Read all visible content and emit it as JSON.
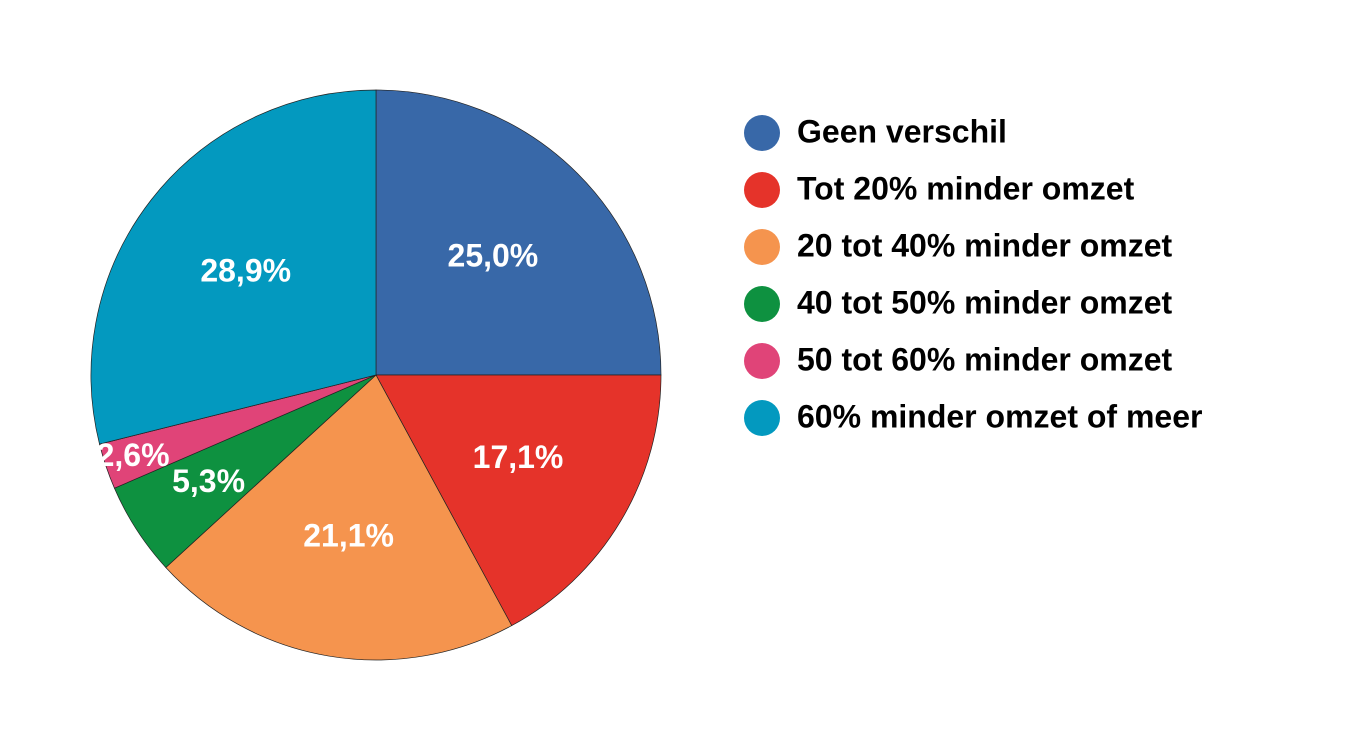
{
  "chart_data": {
    "type": "pie",
    "categories": [
      "Geen verschil",
      "Tot 20% minder omzet",
      "20 tot 40% minder omzet",
      "40 tot 50% minder omzet",
      "50 tot 60% minder omzet",
      "60% minder omzet of meer"
    ],
    "values": [
      25.0,
      17.1,
      21.1,
      5.3,
      2.6,
      28.9
    ],
    "value_labels": [
      "25,0%",
      "17,1%",
      "21,1%",
      "5,3%",
      "2,6%",
      "28,9%"
    ],
    "colors": [
      "#3868a8",
      "#e5332a",
      "#f5944e",
      "#0e9140",
      "#e04478",
      "#0399bf"
    ],
    "legend": "right"
  }
}
